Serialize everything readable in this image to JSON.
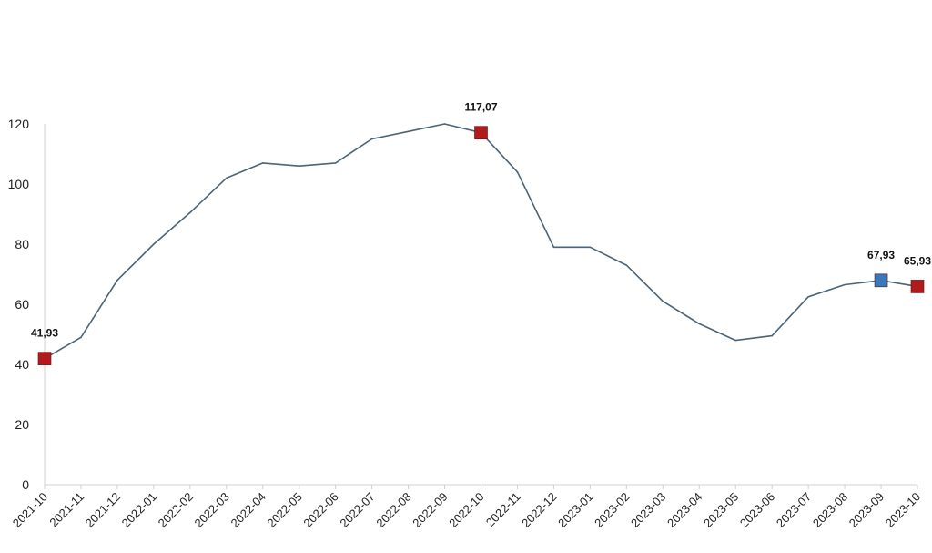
{
  "chart_data": {
    "type": "line",
    "title": "",
    "xlabel": "",
    "ylabel": "",
    "ylim": [
      0,
      120
    ],
    "yticks": [
      0,
      20,
      40,
      60,
      80,
      100,
      120
    ],
    "grid": false,
    "legend": "none",
    "categories": [
      "2021-10",
      "2021-11",
      "2021-12",
      "2022-01",
      "2022-02",
      "2022-03",
      "2022-04",
      "2022-05",
      "2022-06",
      "2022-07",
      "2022-08",
      "2022-09",
      "2022-10",
      "2022-11",
      "2022-12",
      "2023-01",
      "2023-02",
      "2023-03",
      "2023-04",
      "2023-05",
      "2023-06",
      "2023-07",
      "2023-08",
      "2023-09",
      "2023-10"
    ],
    "series": [
      {
        "values": [
          41.93,
          49,
          68,
          80,
          90.5,
          102,
          107,
          106,
          107,
          115,
          117.5,
          120,
          117.07,
          104,
          79,
          79,
          73,
          61,
          53.5,
          48,
          49.5,
          62.5,
          66.5,
          67.93,
          65.93
        ],
        "color": "#4a6478"
      }
    ],
    "highlights": [
      {
        "index": 0,
        "label": "41,93",
        "color": "#b01c1c"
      },
      {
        "index": 12,
        "label": "117,07",
        "color": "#b01c1c"
      },
      {
        "index": 23,
        "label": "67,93",
        "color": "#3a78b8"
      },
      {
        "index": 24,
        "label": "65,93",
        "color": "#b01c1c"
      }
    ]
  }
}
